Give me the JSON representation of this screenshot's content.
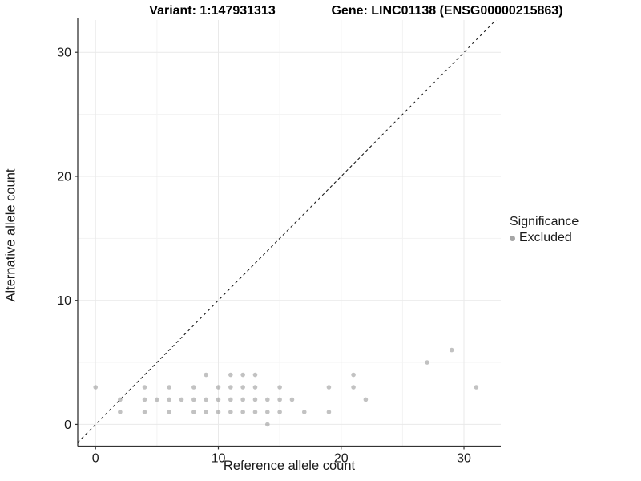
{
  "titles": {
    "left": "Variant: 1:147931313",
    "right": "Gene: LINC01138 (ENSG00000215863)"
  },
  "legend": {
    "title": "Significance",
    "entries": [
      {
        "label": "Excluded",
        "color": "#a6a6a6"
      }
    ]
  },
  "colors": {
    "background": "#ffffff",
    "axis_line": "#333333",
    "grid_major": "#e9e9e9",
    "grid_minor": "#f3f3f3",
    "point": "#9d9d9d",
    "identity_line": "#1a1a1a",
    "text": "#1a1a1a"
  },
  "chart_data": {
    "type": "scatter",
    "title_left": "Variant: 1:147931313",
    "title_right": "Gene: LINC01138 (ENSG00000215863)",
    "xlabel": "Reference allele count",
    "ylabel": "Alternative allele count",
    "xlim": [
      -1.45,
      33.0
    ],
    "ylim": [
      -1.75,
      32.6
    ],
    "x_ticks": [
      0,
      10,
      20,
      30
    ],
    "y_ticks": [
      0,
      10,
      20,
      30
    ],
    "x_minor": [
      5,
      15,
      25
    ],
    "y_minor": [
      5,
      15,
      25
    ],
    "grid": true,
    "legend_position": "right",
    "identity_line": {
      "equation": "y = x",
      "style": "dashed"
    },
    "series": [
      {
        "name": "Excluded",
        "color": "#9d9d9d",
        "points": [
          [
            0,
            3
          ],
          [
            2,
            1
          ],
          [
            2,
            2
          ],
          [
            4,
            1
          ],
          [
            4,
            2
          ],
          [
            4,
            3
          ],
          [
            5,
            2
          ],
          [
            6,
            1
          ],
          [
            6,
            2
          ],
          [
            6,
            3
          ],
          [
            7,
            2
          ],
          [
            8,
            1
          ],
          [
            8,
            2
          ],
          [
            8,
            3
          ],
          [
            9,
            1
          ],
          [
            9,
            2
          ],
          [
            9,
            4
          ],
          [
            10,
            1
          ],
          [
            10,
            2
          ],
          [
            10,
            3
          ],
          [
            11,
            1
          ],
          [
            11,
            2
          ],
          [
            11,
            3
          ],
          [
            11,
            4
          ],
          [
            12,
            1
          ],
          [
            12,
            2
          ],
          [
            12,
            3
          ],
          [
            12,
            4
          ],
          [
            13,
            1
          ],
          [
            13,
            2
          ],
          [
            13,
            3
          ],
          [
            13,
            4
          ],
          [
            14,
            0
          ],
          [
            14,
            1
          ],
          [
            14,
            2
          ],
          [
            15,
            1
          ],
          [
            15,
            2
          ],
          [
            15,
            3
          ],
          [
            16,
            2
          ],
          [
            17,
            1
          ],
          [
            19,
            1
          ],
          [
            19,
            3
          ],
          [
            21,
            3
          ],
          [
            21,
            4
          ],
          [
            22,
            2
          ],
          [
            27,
            5
          ],
          [
            29,
            6
          ],
          [
            31,
            3
          ]
        ]
      }
    ]
  }
}
